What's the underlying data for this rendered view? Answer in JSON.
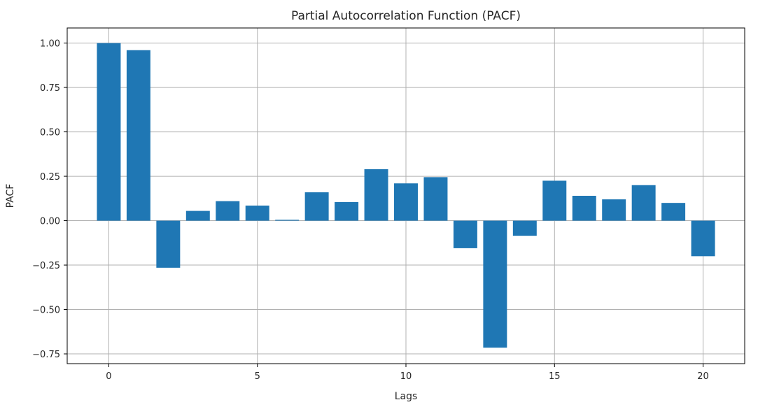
{
  "chart_data": {
    "type": "bar",
    "title": "Partial Autocorrelation Function (PACF)",
    "xlabel": "Lags",
    "ylabel": "PACF",
    "x": [
      0,
      1,
      2,
      3,
      4,
      5,
      6,
      7,
      8,
      9,
      10,
      11,
      12,
      13,
      14,
      15,
      16,
      17,
      18,
      19,
      20
    ],
    "values": [
      1.0,
      0.96,
      -0.265,
      0.055,
      0.11,
      0.085,
      0.005,
      0.16,
      0.105,
      0.29,
      0.21,
      0.245,
      -0.155,
      -0.715,
      -0.085,
      0.225,
      0.14,
      0.12,
      0.2,
      0.1,
      -0.2
    ],
    "xlim": [
      -1.4,
      21.4
    ],
    "ylim": [
      -0.805,
      1.085
    ],
    "xticks": [
      0,
      5,
      10,
      15,
      20
    ],
    "xtick_labels": [
      "0",
      "5",
      "10",
      "15",
      "20"
    ],
    "yticks": [
      1.0,
      0.75,
      0.5,
      0.25,
      0.0,
      -0.25,
      -0.5,
      -0.75
    ],
    "ytick_labels": [
      "1.00",
      "0.75",
      "0.50",
      "0.25",
      "0.00",
      "−0.25",
      "−0.50",
      "−0.75"
    ],
    "bar_color": "#1f77b4",
    "grid": true,
    "legend": "none"
  }
}
